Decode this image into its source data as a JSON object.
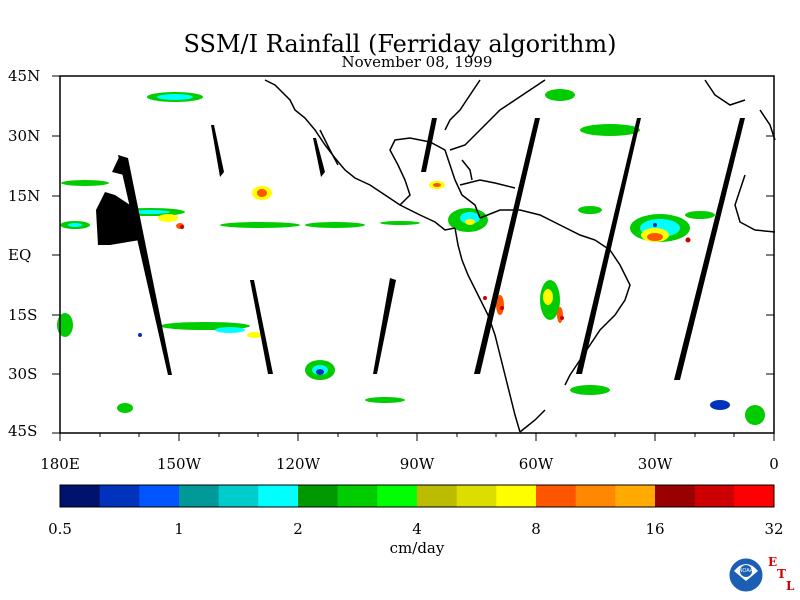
{
  "title": "SSM/I Rainfall (Ferriday algorithm)",
  "subtitle": "November 08, 1999",
  "lat_labels": [
    "45N",
    "30N",
    "15N",
    "EQ",
    "15S",
    "30S",
    "45S"
  ],
  "lon_labels": [
    "180E",
    "150W",
    "120W",
    "90W",
    "60W",
    "30W",
    "0"
  ],
  "colorbar": {
    "units": "cm/day",
    "tick_labels": [
      "0.5",
      "1",
      "2",
      "4",
      "8",
      "16",
      "32"
    ],
    "colors": [
      "#00116e",
      "#0033bb",
      "#0055ff",
      "#009999",
      "#00cccc",
      "#00ffff",
      "#009900",
      "#00cc00",
      "#00ff00",
      "#bbbb00",
      "#dddd00",
      "#ffff00",
      "#ff5500",
      "#ff8800",
      "#ffaa00",
      "#990000",
      "#cc0000",
      "#ff0000"
    ]
  },
  "logo": {
    "agency": "NOAA",
    "lab_letters": [
      "E",
      "T",
      "L"
    ]
  }
}
